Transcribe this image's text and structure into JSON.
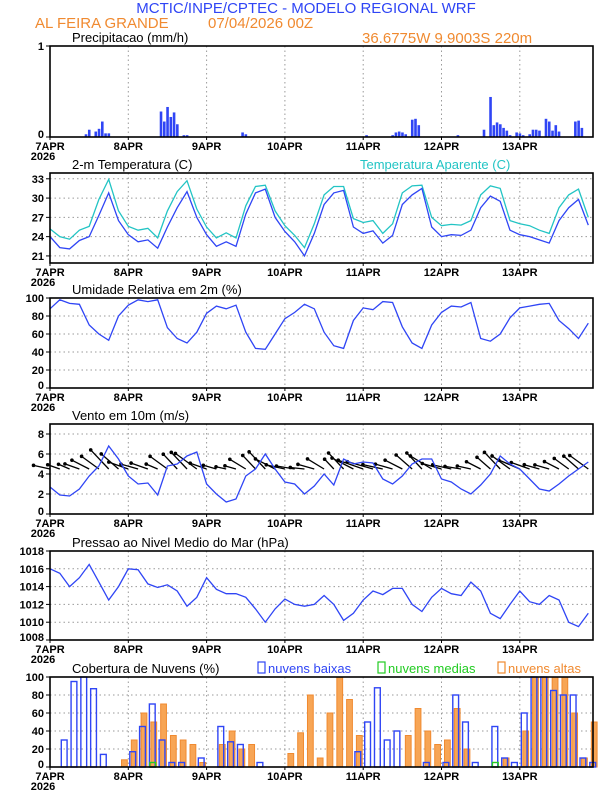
{
  "header": {
    "title": "MCTIC/INPE/CPTEC - MODELO REGIONAL WRF",
    "location": "AL FEIRA GRANDE",
    "run": "07/04/2026 00Z",
    "coords": "36.6775W 9.9003S 220m"
  },
  "colors": {
    "blue": "#2f45f5",
    "cyan": "#22c4c4",
    "orange": "#f08a30",
    "green": "#22cc22",
    "header_blue": "#2f45f5",
    "header_orange": "#f08a30"
  },
  "x_axis": {
    "labels": [
      "7APR",
      "8APR",
      "9APR",
      "10APR",
      "11APR",
      "12APR",
      "13APR"
    ],
    "year": "2026",
    "step_hours": 3,
    "total_hours": 166
  },
  "chart_data": [
    {
      "id": "precip",
      "type": "bar",
      "title": "Precipitacao (mm/h)",
      "ylim": [
        0,
        1
      ],
      "yticks": [
        0,
        1
      ],
      "hours": [
        11,
        12,
        14,
        15,
        16,
        17,
        18,
        34,
        35,
        36,
        37,
        38,
        39,
        41,
        42,
        59,
        60,
        97,
        105,
        106,
        107,
        108,
        109,
        111,
        112,
        113,
        125,
        133,
        135,
        136,
        137,
        138,
        139,
        140,
        141,
        143,
        144,
        145,
        147,
        148,
        149,
        150,
        152,
        153,
        154,
        155,
        156,
        161,
        162,
        163
      ],
      "values": [
        0.03,
        0.08,
        0.06,
        0.09,
        0.17,
        0.04,
        0.04,
        0.28,
        0.17,
        0.33,
        0.22,
        0.27,
        0.14,
        0.02,
        0.02,
        0.05,
        0.03,
        0.02,
        0.02,
        0.05,
        0.06,
        0.05,
        0.03,
        0.19,
        0.2,
        0.13,
        0.02,
        0.08,
        0.44,
        0.13,
        0.16,
        0.14,
        0.1,
        0.07,
        0.02,
        0.05,
        0.04,
        0.02,
        0.03,
        0.08,
        0.08,
        0.07,
        0.2,
        0.17,
        0.07,
        0.13,
        0.06,
        0.17,
        0.18,
        0.1
      ]
    },
    {
      "id": "temp",
      "type": "line",
      "title": "2-m Temperatura (C)",
      "ylim": [
        19.9,
        33.9
      ],
      "yticks": [
        21,
        24,
        27,
        30,
        33
      ],
      "series": [
        {
          "name": "2-m Temperatura (C)",
          "color": "#2f45f5",
          "values": [
            24,
            22.3,
            22.1,
            23.4,
            24,
            27.3,
            30.8,
            26.5,
            24.3,
            23.2,
            23.5,
            22.2,
            25.5,
            28.5,
            31,
            27,
            24.3,
            22.5,
            23.2,
            22.5,
            27.5,
            30.8,
            31.4,
            27,
            24.8,
            23.2,
            21,
            24.5,
            29,
            30.8,
            31.2,
            25.5,
            24.5,
            24.9,
            23,
            24.2,
            29,
            30.5,
            31.5,
            25.5,
            24,
            24.3,
            24.2,
            25,
            28.5,
            30.3,
            29.5,
            25,
            24.3,
            24,
            23.5,
            23,
            26.5,
            28.5,
            29.8,
            25.8
          ]
        },
        {
          "name": "Temperatura Aparente (C)",
          "color": "#22c4c4",
          "values": [
            25.2,
            24,
            23.6,
            25,
            25.6,
            29.8,
            32.9,
            28,
            25.6,
            25,
            25.3,
            23.8,
            28,
            31,
            32.7,
            28.3,
            25.5,
            23.8,
            24.6,
            23.8,
            28.8,
            31.8,
            32,
            28,
            25.7,
            24.2,
            22.3,
            26,
            30.5,
            31.8,
            31.8,
            26.8,
            26.2,
            26.5,
            24.5,
            26,
            30.8,
            31.9,
            32,
            27,
            25.7,
            25.9,
            25.8,
            26.5,
            30.5,
            31.9,
            31.5,
            26.5,
            26,
            25.7,
            25,
            24.5,
            28.5,
            30.5,
            31.4,
            27
          ]
        }
      ]
    },
    {
      "id": "rh",
      "type": "line",
      "title": "Umidade Relativa em 2m (%)",
      "ylim": [
        0,
        100
      ],
      "yticks": [
        0,
        20,
        40,
        60,
        80,
        100
      ],
      "series": [
        {
          "name": "Umidade Relativa",
          "color": "#2f45f5",
          "values": [
            88,
            98,
            94,
            93,
            70,
            60,
            53,
            80,
            92,
            98,
            96,
            98,
            67,
            55,
            50,
            62,
            83,
            91,
            88,
            92,
            62,
            44,
            43,
            60,
            77,
            84,
            93,
            88,
            62,
            47,
            44,
            75,
            89,
            87,
            96,
            95,
            68,
            50,
            44,
            70,
            84,
            91,
            90,
            95,
            55,
            52,
            60,
            78,
            89,
            91,
            93,
            94,
            75,
            66,
            55,
            72
          ]
        }
      ]
    },
    {
      "id": "wind",
      "type": "line",
      "title": "Vento em 10m (m/s)",
      "ylim": [
        0,
        9
      ],
      "yticks": [
        0,
        2,
        4,
        6,
        8
      ],
      "series": [
        {
          "name": "Vento em 10m",
          "color": "#2f45f5",
          "values": [
            2.7,
            1.9,
            1.8,
            2.5,
            3.8,
            4.8,
            6.8,
            5.5,
            3.8,
            3.0,
            3.1,
            1.9,
            4.8,
            5.0,
            5.8,
            6.2,
            3.0,
            2.0,
            1.2,
            1.5,
            3.8,
            4.5,
            6.0,
            4.5,
            3.2,
            3.0,
            2.0,
            2.8,
            4.0,
            2.9,
            5.5,
            5.0,
            5.2,
            5.1,
            3.5,
            3.0,
            3.8,
            5.0,
            5.5,
            5.5,
            3.5,
            3.2,
            2.5,
            2.0,
            2.9,
            4.0,
            5.8,
            5.0,
            4.5,
            3.5,
            2.5,
            2.3,
            3.0,
            3.8,
            4.5,
            5.2
          ]
        }
      ],
      "wind_dir_deg": [
        110,
        120,
        125,
        120,
        130,
        140,
        150,
        145,
        120,
        115,
        120,
        125,
        140,
        150,
        150,
        140,
        120,
        115,
        110,
        115,
        135,
        150,
        150,
        130,
        110,
        105,
        100,
        115,
        135,
        150,
        150,
        130,
        120,
        115,
        110,
        115,
        130,
        145,
        150,
        135,
        115,
        110,
        105,
        110,
        130,
        145,
        150,
        140,
        125,
        120,
        115,
        115,
        130,
        140,
        145,
        140
      ]
    },
    {
      "id": "pres",
      "type": "line",
      "title": "Pressao ao Nivel Medio do Mar (hPa)",
      "ylim": [
        1008,
        1018
      ],
      "yticks": [
        1008,
        1010,
        1012,
        1014,
        1016,
        1018
      ],
      "series": [
        {
          "name": "Pressao",
          "color": "#2f45f5",
          "values": [
            1016,
            1015.5,
            1014,
            1015,
            1016.5,
            1014.5,
            1012.5,
            1014,
            1016,
            1015.9,
            1014.3,
            1013.9,
            1014.2,
            1013.5,
            1011.8,
            1012.8,
            1015,
            1013.7,
            1013.2,
            1013.2,
            1012.8,
            1011.5,
            1010,
            1011.5,
            1012.6,
            1012,
            1011.8,
            1012,
            1013,
            1012,
            1010.2,
            1011,
            1012.5,
            1013.5,
            1013.1,
            1013.8,
            1013.8,
            1012,
            1011.2,
            1012.8,
            1013.8,
            1013.2,
            1013,
            1014.5,
            1013.5,
            1011,
            1010.4,
            1012,
            1013.5,
            1012.3,
            1012,
            1013,
            1012.5,
            1010,
            1009.5,
            1011
          ]
        }
      ]
    },
    {
      "id": "cloud",
      "type": "bar",
      "title": "Cobertura de Nuvens (%)",
      "ylim": [
        0,
        100
      ],
      "yticks": [
        0,
        20,
        40,
        60,
        80,
        100
      ],
      "series": [
        {
          "name": "nuvens baixas",
          "color": "#2f45f5",
          "values": [
            0,
            30,
            95,
            100,
            87,
            14,
            0,
            0,
            17,
            45,
            70,
            30,
            5,
            5,
            0,
            10,
            0,
            45,
            28,
            25,
            0,
            5,
            0,
            0,
            0,
            0,
            0,
            0,
            0,
            0,
            0,
            17,
            50,
            88,
            30,
            40,
            0,
            0,
            5,
            0,
            5,
            80,
            50,
            5,
            0,
            45,
            10,
            5,
            60,
            100,
            100,
            85,
            80,
            80,
            10,
            5
          ]
        },
        {
          "name": "nuvens medias",
          "color": "#22cc22",
          "values": [
            0,
            0,
            0,
            0,
            0,
            0,
            0,
            0,
            0,
            0,
            5,
            0,
            0,
            0,
            0,
            0,
            0,
            0,
            0,
            0,
            0,
            0,
            0,
            0,
            0,
            0,
            0,
            0,
            0,
            0,
            0,
            0,
            0,
            0,
            0,
            0,
            0,
            0,
            0,
            0,
            0,
            0,
            0,
            0,
            0,
            5,
            0,
            0,
            0,
            0,
            0,
            0,
            0,
            0,
            0,
            0
          ]
        },
        {
          "name": "nuvens altas",
          "color": "#f08a30",
          "values": [
            0,
            0,
            0,
            0,
            0,
            0,
            0,
            8,
            30,
            60,
            50,
            70,
            35,
            30,
            25,
            5,
            0,
            25,
            40,
            20,
            25,
            0,
            0,
            0,
            15,
            38,
            80,
            10,
            60,
            100,
            75,
            35,
            0,
            0,
            0,
            0,
            35,
            65,
            40,
            25,
            30,
            65,
            20,
            0,
            0,
            0,
            10,
            0,
            40,
            100,
            100,
            100,
            100,
            60,
            10,
            50
          ]
        }
      ]
    }
  ]
}
